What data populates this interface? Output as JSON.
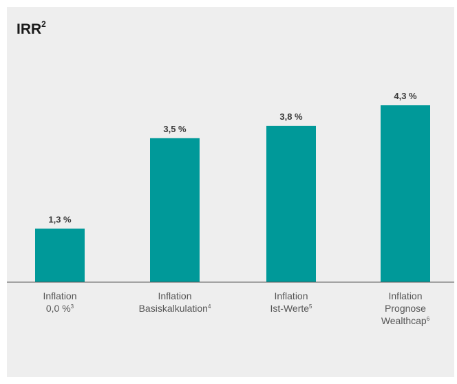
{
  "chart_data": {
    "type": "bar",
    "title": "IRR",
    "title_superscript": "2",
    "categories": [
      {
        "lines": [
          "Inflation",
          "0,0 %"
        ],
        "footnote": "3"
      },
      {
        "lines": [
          "Inflation",
          "Basiskalkulation"
        ],
        "footnote": "4"
      },
      {
        "lines": [
          "Inflation",
          "Ist-Werte"
        ],
        "footnote": "5"
      },
      {
        "lines": [
          "Inflation",
          "Prognose",
          "Wealthcap"
        ],
        "footnote": "6"
      }
    ],
    "values": [
      1.3,
      3.5,
      3.8,
      4.3
    ],
    "value_labels": [
      "1,3 %",
      "3,5 %",
      "3,8 %",
      "4,3 %"
    ],
    "ylim": [
      0,
      4.3
    ],
    "grid": false,
    "legend": "none",
    "bar_color": "#009999",
    "axis_color": "#555555",
    "background_color": "#eeeeee"
  }
}
